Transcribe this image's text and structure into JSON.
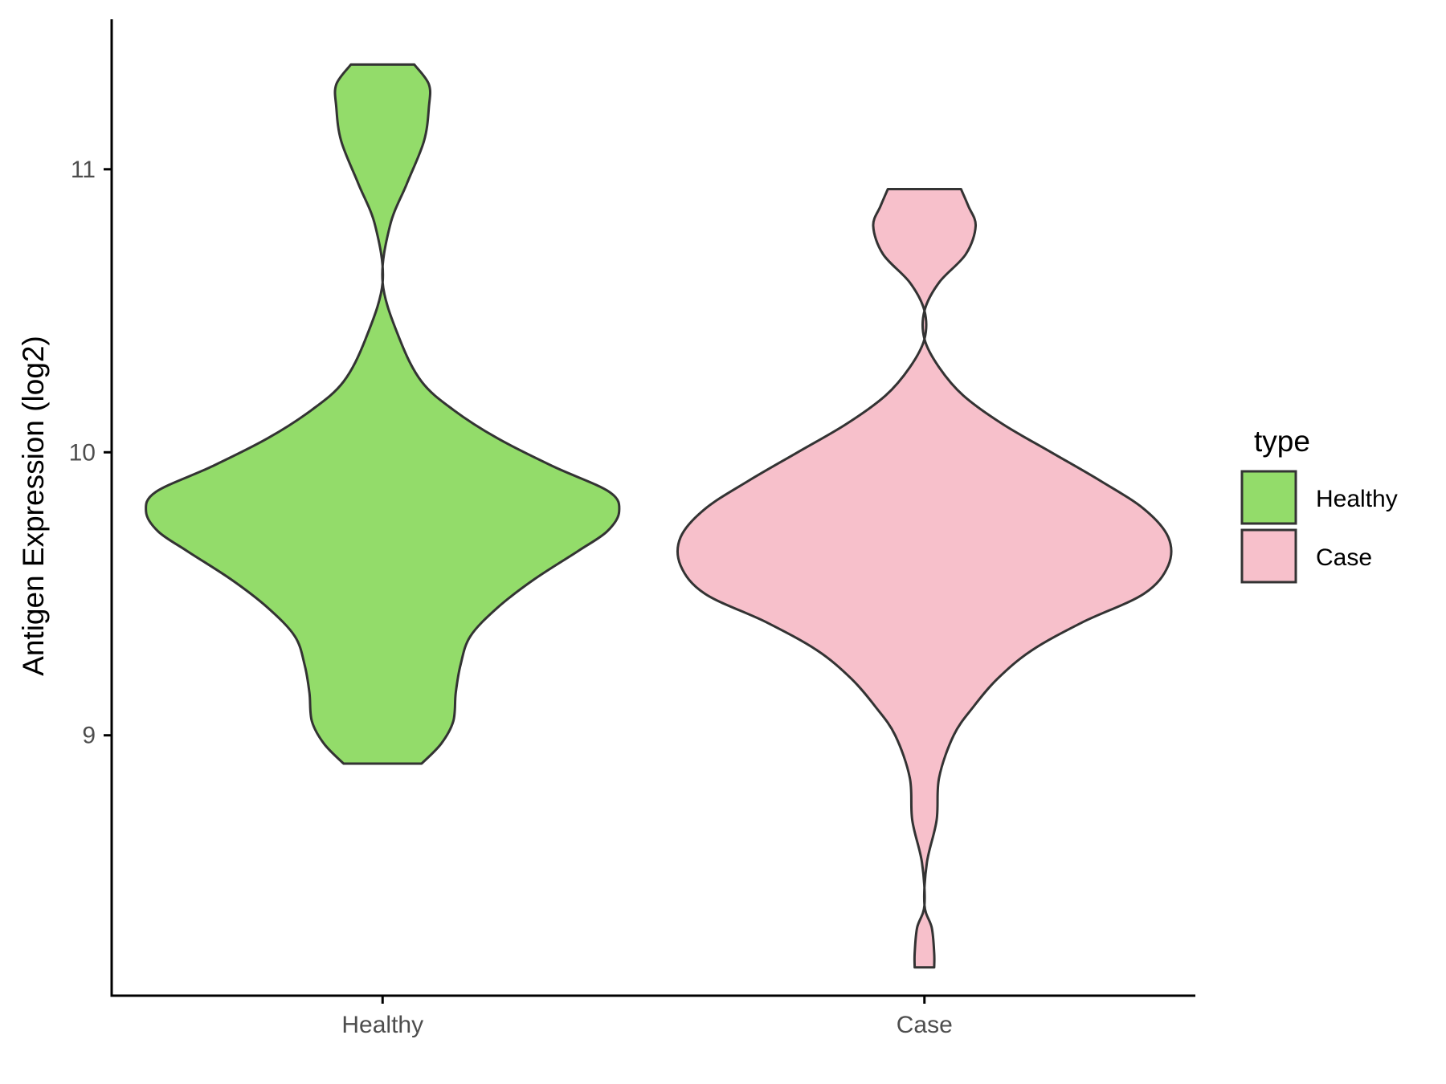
{
  "chart_data": {
    "type": "violin",
    "xlabel": "",
    "ylabel": "Antigen Expression (log2)",
    "ylim": [
      8.08,
      11.53
    ],
    "yticks": [
      9,
      10,
      11
    ],
    "categories": [
      "Healthy",
      "Case"
    ],
    "grid": false,
    "legend": {
      "title": "type",
      "placement": "right",
      "entries": [
        {
          "label": "Healthy",
          "color": "#93dc6a"
        },
        {
          "label": "Case",
          "color": "#f7c0cb"
        }
      ]
    },
    "series": [
      {
        "category": "Healthy",
        "color": "#93dc6a",
        "min": 8.9,
        "max": 11.37,
        "density_profile": [
          [
            8.9,
            0.16
          ],
          [
            8.97,
            0.24
          ],
          [
            9.05,
            0.29
          ],
          [
            9.15,
            0.3
          ],
          [
            9.25,
            0.32
          ],
          [
            9.35,
            0.36
          ],
          [
            9.45,
            0.47
          ],
          [
            9.55,
            0.62
          ],
          [
            9.65,
            0.8
          ],
          [
            9.72,
            0.92
          ],
          [
            9.79,
            0.97
          ],
          [
            9.86,
            0.93
          ],
          [
            9.95,
            0.7
          ],
          [
            10.05,
            0.47
          ],
          [
            10.15,
            0.29
          ],
          [
            10.25,
            0.16
          ],
          [
            10.4,
            0.07
          ],
          [
            10.6,
            0.0
          ],
          [
            10.8,
            0.03
          ],
          [
            10.95,
            0.1
          ],
          [
            11.1,
            0.17
          ],
          [
            11.22,
            0.19
          ],
          [
            11.3,
            0.19
          ],
          [
            11.37,
            0.13
          ]
        ]
      },
      {
        "category": "Case",
        "color": "#f7c0cb",
        "min": 8.18,
        "max": 10.93,
        "density_profile": [
          [
            8.18,
            0.04
          ],
          [
            8.23,
            0.04
          ],
          [
            8.32,
            0.03
          ],
          [
            8.4,
            0.0
          ],
          [
            8.55,
            0.01
          ],
          [
            8.7,
            0.05
          ],
          [
            8.85,
            0.06
          ],
          [
            9.0,
            0.12
          ],
          [
            9.1,
            0.2
          ],
          [
            9.2,
            0.3
          ],
          [
            9.3,
            0.44
          ],
          [
            9.4,
            0.65
          ],
          [
            9.5,
            0.9
          ],
          [
            9.6,
            1.0
          ],
          [
            9.7,
            1.0
          ],
          [
            9.8,
            0.9
          ],
          [
            9.9,
            0.72
          ],
          [
            10.0,
            0.52
          ],
          [
            10.1,
            0.32
          ],
          [
            10.2,
            0.16
          ],
          [
            10.3,
            0.06
          ],
          [
            10.4,
            0.0
          ],
          [
            10.5,
            0.0
          ],
          [
            10.6,
            0.06
          ],
          [
            10.7,
            0.17
          ],
          [
            10.8,
            0.21
          ],
          [
            10.87,
            0.18
          ],
          [
            10.93,
            0.15
          ]
        ]
      }
    ]
  }
}
